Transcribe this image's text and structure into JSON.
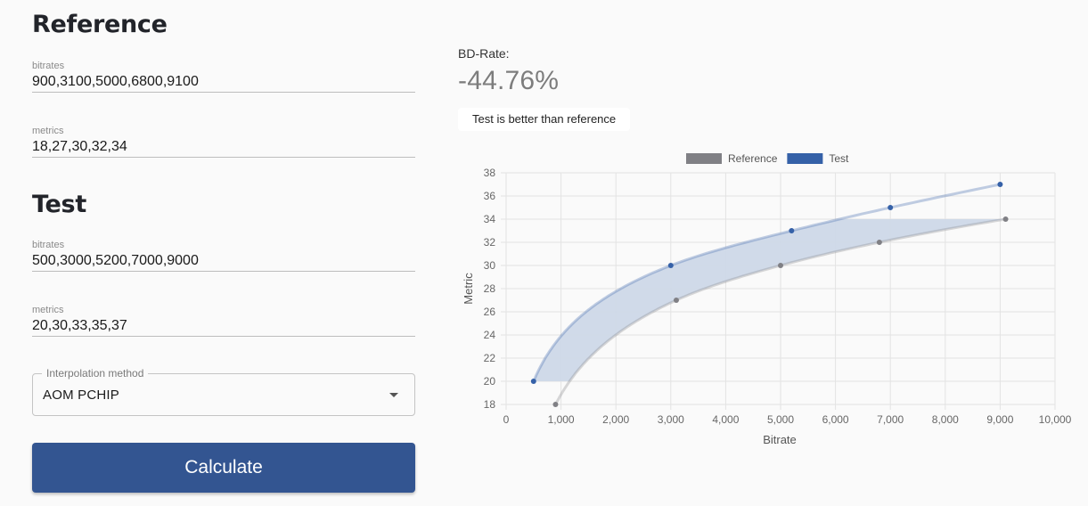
{
  "reference": {
    "title": "Reference",
    "bitrates_label": "bitrates",
    "bitrates_value": "900,3100,5000,6800,9100",
    "metrics_label": "metrics",
    "metrics_value": "18,27,30,32,34"
  },
  "test": {
    "title": "Test",
    "bitrates_label": "bitrates",
    "bitrates_value": "500,3000,5200,7000,9000",
    "metrics_label": "metrics",
    "metrics_value": "20,30,33,35,37"
  },
  "interpolation": {
    "label": "Interpolation method",
    "selected": "AOM PCHIP"
  },
  "calculate_label": "Calculate",
  "result": {
    "label": "BD-Rate:",
    "value": "-44.76%",
    "verdict": "Test is better than reference"
  },
  "chart_data": {
    "type": "line",
    "xlabel": "Bitrate",
    "ylabel": "Metric",
    "xlim": [
      0,
      10000
    ],
    "ylim": [
      18,
      38
    ],
    "x_ticks": [
      "0",
      "1,000",
      "2,000",
      "3,000",
      "4,000",
      "5,000",
      "6,000",
      "7,000",
      "8,000",
      "9,000",
      "10,000"
    ],
    "y_ticks": [
      "18",
      "20",
      "22",
      "24",
      "26",
      "28",
      "30",
      "32",
      "34",
      "36",
      "38"
    ],
    "grid": true,
    "legend_position": "top",
    "series": [
      {
        "name": "Reference",
        "color": "#808085",
        "x": [
          900,
          3100,
          5000,
          6800,
          9100
        ],
        "y": [
          18,
          27,
          30,
          32,
          34
        ]
      },
      {
        "name": "Test",
        "color": "#3561a8",
        "x": [
          500,
          3000,
          5200,
          7000,
          9000
        ],
        "y": [
          20,
          30,
          33,
          35,
          37
        ]
      }
    ],
    "fill_between": {
      "color": "#cdd8e8",
      "range_metric": [
        20,
        34
      ]
    }
  }
}
